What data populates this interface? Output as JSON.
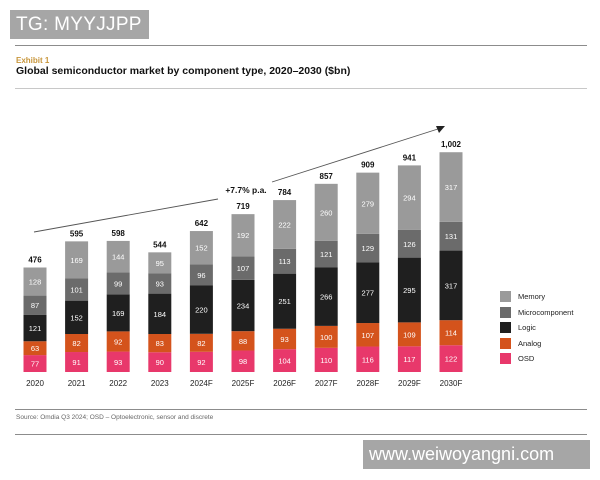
{
  "watermarks": {
    "top": "TG: MYYJJPP",
    "bottom": "www.weiwoyangni.com"
  },
  "header": {
    "exhibit": "Exhibit  1",
    "title": "Global semiconductor market by component type, 2020–2030 ($bn)"
  },
  "footer": {
    "source": "Source: Omdia Q3 2024; OSD – Optoelectronic, sensor and discrete"
  },
  "chart_data": {
    "type": "bar",
    "stacked": true,
    "title": "Global semiconductor market by component type, 2020–2030 ($bn)",
    "xlabel": "",
    "ylabel": "",
    "grid": false,
    "legend_position": "right",
    "annotation": "+7.7% p.a.",
    "categories": [
      "2020",
      "2021",
      "2022",
      "2023",
      "2024F",
      "2025F",
      "2026F",
      "2027F",
      "2028F",
      "2029F",
      "2030F"
    ],
    "totals": [
      "476",
      "595",
      "598",
      "544",
      "642",
      "719",
      "784",
      "857",
      "909",
      "941",
      "1,002"
    ],
    "total_values": [
      476,
      595,
      598,
      544,
      642,
      719,
      784,
      857,
      909,
      941,
      1002
    ],
    "series": [
      {
        "name": "OSD",
        "color": "#e8386b",
        "values": [
          77,
          91,
          93,
          90,
          92,
          98,
          104,
          110,
          116,
          117,
          122
        ]
      },
      {
        "name": "Analog",
        "color": "#d4531c",
        "values": [
          63,
          82,
          92,
          83,
          82,
          88,
          93,
          100,
          107,
          109,
          114
        ]
      },
      {
        "name": "Logic",
        "color": "#1f1f1f",
        "values": [
          121,
          152,
          169,
          184,
          220,
          234,
          251,
          266,
          277,
          295,
          317
        ]
      },
      {
        "name": "Microcomponent",
        "color": "#6b6b6b",
        "values": [
          87,
          101,
          99,
          93,
          96,
          107,
          113,
          121,
          129,
          126,
          131
        ]
      },
      {
        "name": "Memory",
        "color": "#9a9a9a",
        "values": [
          128,
          169,
          144,
          95,
          152,
          192,
          222,
          260,
          279,
          294,
          317
        ]
      }
    ],
    "legend": [
      "Memory",
      "Microcomponent",
      "Logic",
      "Analog",
      "OSD"
    ],
    "ylim": [
      0,
      1002
    ]
  }
}
